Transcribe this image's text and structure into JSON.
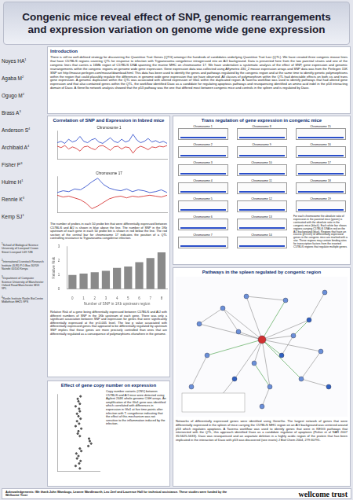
{
  "header": {
    "title": "Congenic mice reveal effect of SNP, genomic rearrangements and expression variation on genome wide gene expression"
  },
  "authors": [
    {
      "name": "Noyes HA",
      "affiliation": "1"
    },
    {
      "name": "Agaba M",
      "affiliation": "2"
    },
    {
      "name": "Ogugo M",
      "affiliation": "2"
    },
    {
      "name": "Brass A",
      "affiliation": "3"
    },
    {
      "name": "Anderson S",
      "affiliation": "4"
    },
    {
      "name": "Archibald A",
      "affiliation": "4"
    },
    {
      "name": "Fisher P",
      "affiliation": "3"
    },
    {
      "name": "Hulme H",
      "affiliation": "1"
    },
    {
      "name": "Rennie K",
      "affiliation": "3"
    },
    {
      "name": "Kemp SJ",
      "affiliation": "1"
    }
  ],
  "affiliations": [
    {
      "mark": "1",
      "text": "School of Biological Science University of Liverpool Crown Street Liverpool L69 7ZB"
    },
    {
      "mark": "2",
      "text": "International Livestock Research Institute (ILRI) P.O.Box 30709 Nairobi 00100 Kenya"
    },
    {
      "mark": "3",
      "text": "Department of Computer Science University of Manchester Oxford Road Manchester M13 9PL"
    },
    {
      "mark": "4",
      "text": "Roslin Institute Roslin BioCentre Midlothian EH25 9PS"
    }
  ],
  "introduction": {
    "heading": "Introduction",
    "text": "There is still no well-defined strategy for discovering the Quantitive Trait Genes (QTG) amongst the hundreds of candidates underlying Quantitive Trait Loci (QTL). We have created three congenic mouse lines that have C57BL/6 regions covering QTL for response to infection with Trypanosoma congolense introgressed into an A/J background. Data is presented here from the two parental strains and one of the congenic lines that carries a 16Mb region of C57BL/6 DNA spanning the murine MHC on chromosome 17. We have undertaken a systematic analysis of the effect of SNP, gene expression and genomic rearrangements within the congenic regions on genome wide gene expression. Gene expression data was collected using Affymetrix 430_2 mouse expression arrays and SNP data was from the Perlegen 15K SNP set http://mouse.perlegen.com/mouse/download.html. This data has been used to identify the genes and pathways regulated by the congenic region and at the same time to identify genetic polymorphisms within the region that could plausibly regulate the differences in genome wide gene expression that we have observed. All classes of polymorphism within the QTL had detectable effects on both cis and trans gene expression. A genomic duplication within the QTL was associated with altered expression of Glo1 within the duplicated region. A Taverna workflow was used to identify pathways that had altered gene expression and that also contained genes within the QTL, the workflow identified Daxx as a candidate for regulating apoptosis pathways and resequencing identified an amino acid indel in the p53 interacting domain of Daxx. A GeneGo network analysis showed that the p53 pathway was the one that differed most between congenic mice and controls in the spleen and is regulated by Daxx."
  },
  "correlation": {
    "heading": "Correlation of SNP and Expression in Inbred mice",
    "text": "The number of probes in each 50 probe bin that were differentially expressed between C57BL/6 and A/J is shown in blue above the line. The number of SNP in the 1Kb upstream of each gene in each 50 probe bin is shown in red below the line. The red section of the central bar for chromosome 17 indicates the position of a QTL controlling resistance to Trypanosoma congolense infection.",
    "caption": "Relative Risk of a gene being differentially expressed between C57BL/6 and A/J with different numbers of SNP in the 1Kb upstream of each gene. There was only a significant association between SNP and expression for genes that were significantly differentially expressed at the p<0.005 level. The low p value associated with differentially expressed genes that appeared to be differentially regulated by upstream SNP implies that these genes are more precisely controlled than ones that are differentially regulated as a consequence of polymorphisms elsewhere in the genome."
  },
  "cnv": {
    "heading": "Effect of gene copy number on expression",
    "text": "Copy number variants (CNV) between C57BL/6 and A/J mice were detected using Agilent 244K whole genome CGH arrays. An amplification of the Glo1 gene was identified which correlated with differences in expression in Glo1 at five time points after infection with T. congolense indicating that the effect of this mechanism was not sensitive to the inflammation induced by the infection."
  },
  "trans": {
    "heading": "Trans regulation of gene expression in congenic mice",
    "chromosomes": [
      "Chromosome 1",
      "Chromosome 2",
      "Chromosome 3",
      "Chromosome 4",
      "Chromosome 5",
      "Chromosome 6",
      "Chromosome 7",
      "Chromosome 8",
      "Chromosome 9",
      "Chromosome 10",
      "Chromosome 11",
      "Chromosome 12",
      "Chromosome 13",
      "Chromosome 14",
      "Chromosome 15",
      "Chromosome 16",
      "Chromosome 17",
      "Chromosome 18",
      "Chromosome 19"
    ],
    "text": "For each chromosome the absolute ratio of expression in the parental mice (green) is contrasted with the absolute ratio in the congenic mice (black). Each white bar shows regions carrying C57BL/6 DNA in red on the A/J background (blue). Regions that have an excess (p<0.05) of differentially expressed genes in the congenic mice are marked with a star. These regions may contain binding sites for transcription factors from the inserted C57BL/6 regions that regulate multiple genes."
  },
  "pathways": {
    "heading": "Pathways in the spleen regulated by congenic region",
    "text": "Networks of differentially expressed genes were identified using GeneGo. The largest network of genes that were differentially expressed in the spleen of mice carrying the C57BL/6 MHC region on an A/J background was centered around p53 which regulates apoptosis. A Taverna workflow was used to identify genes that were in KEGG pathways that intersected with the QTL, this approach identified Daxx as a candidate regulator of apoptosis (Fisher et al NAR 2007 35:5625-5633). Daxx was resequenced and an aspartate deletion in a highly acidic region of the protein that has been implicated in the interaction of Daxx with p53 was discovered (see insets) J Biol Chem 2004, 279:30791."
  },
  "footer": {
    "acknowledgements": "Acknowledgements: We thank John Wambugu, Leanne Wardleworth, Leo Zeef and Laurence Hall for technical assistance. These studies were funded by the Wellcome Trust",
    "logo": "wellcome trust"
  },
  "chart_data": [
    {
      "type": "line",
      "title": "Chromosome 1",
      "categories": [
        null,
        null,
        null,
        null,
        null,
        null,
        null,
        null,
        null,
        null,
        null,
        null,
        null,
        null,
        null,
        null,
        null,
        null,
        null,
        null,
        null,
        null,
        null,
        null,
        null,
        null,
        null,
        null,
        null,
        null
      ],
      "series": [
        {
          "color": "#2040c8",
          "values": [
            3,
            5,
            2,
            8,
            4,
            6,
            12,
            5,
            3,
            7,
            9,
            4,
            2,
            6,
            10,
            5,
            3,
            8,
            4,
            6,
            15,
            7,
            3,
            5,
            9,
            4,
            6,
            3,
            5,
            2
          ]
        },
        {
          "color": "#d02020",
          "values": [
            -2,
            -4,
            -1,
            -6,
            -3,
            -5,
            -9,
            -3,
            -2,
            -5,
            -7,
            -2,
            -1,
            -4,
            -8,
            -3,
            -2,
            -6,
            -3,
            -4,
            -12,
            -5,
            -2,
            -4,
            -7,
            -3,
            -4,
            -2,
            -3,
            -1
          ]
        }
      ],
      "ylim": [
        -20,
        20
      ],
      "tick_labels": false,
      "grid": false,
      "legend": "none"
    },
    {
      "type": "line",
      "title": "Chromosome 17",
      "categories": [
        null,
        null,
        null,
        null,
        null,
        null,
        null,
        null,
        null,
        null,
        null,
        null,
        null,
        null,
        null,
        null,
        null,
        null,
        null,
        null
      ],
      "series": [
        {
          "color": "#2040c8",
          "values": [
            2,
            4,
            3,
            6,
            5,
            9,
            14,
            18,
            11,
            7,
            5,
            4,
            6,
            3,
            5,
            4,
            2,
            3,
            5,
            2
          ]
        },
        {
          "color": "#d02020",
          "values": [
            -1,
            -3,
            -2,
            -4,
            -6,
            -10,
            -16,
            -13,
            -9,
            -5,
            -3,
            -2,
            -4,
            -2,
            -3,
            -2,
            -1,
            -2,
            -3,
            -1
          ]
        }
      ],
      "ylim": [
        -20,
        20
      ],
      "tick_labels": false,
      "grid": false,
      "legend": "none"
    },
    {
      "type": "bar",
      "x_label": "Number of SNP in 1Kb upstream region",
      "y_label": "Relative Risk",
      "categories": [
        "0",
        "1",
        "2",
        "3",
        "4",
        "5",
        "6",
        "7",
        "8"
      ],
      "values": [
        1.0,
        1.1,
        1.2,
        1.3,
        1.5,
        1.6,
        1.9,
        2.2,
        2.6
      ],
      "color": "#8a8a8a",
      "ylim": [
        0,
        3
      ],
      "yticks": [
        0,
        1,
        2,
        3
      ],
      "grid": false,
      "legend": "none"
    },
    {
      "type": "scatter",
      "x": [
        0.1,
        -0.2,
        0.05,
        0.15,
        -0.1,
        0.0,
        -0.15,
        0.2,
        0.1,
        0.7,
        0.9,
        0.8,
        0.75,
        0.1,
        -0.05,
        0.0,
        0.2,
        -0.2,
        0.05,
        -0.1,
        0.15,
        0.0,
        -0.1,
        0.1,
        0.05,
        -0.2,
        0.1,
        0.0,
        -0.05,
        0.15
      ],
      "values": [
        1,
        2,
        3,
        4,
        5,
        6,
        7,
        8,
        9,
        10,
        11,
        12,
        13,
        14,
        15,
        16,
        17,
        18,
        19,
        20,
        21,
        22,
        23,
        24,
        25,
        26,
        27,
        28,
        29,
        30
      ],
      "color": "#505050",
      "xlim": [
        -1.5,
        1.5
      ],
      "ylim": [
        0,
        31
      ],
      "tick_labels": false,
      "grid": false,
      "legend": "none"
    }
  ]
}
